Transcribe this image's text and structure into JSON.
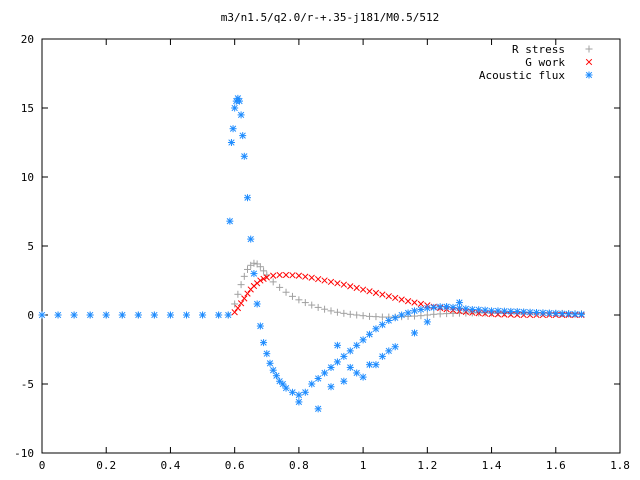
{
  "chart_data": {
    "type": "scatter",
    "title": "m3/n1.5/q2.0/r-+.35-j181/M0.5/512",
    "xlabel": "",
    "ylabel": "",
    "xlim": [
      0,
      1.8
    ],
    "ylim": [
      -10,
      20
    ],
    "x_ticks": [
      0,
      0.2,
      0.4,
      0.6,
      0.8,
      1,
      1.2,
      1.4,
      1.6,
      1.8
    ],
    "x_tick_labels": [
      "0",
      "0.2",
      "0.4",
      "0.6",
      "0.8",
      "1",
      "1.2",
      "1.4",
      "1.6",
      "1.8"
    ],
    "y_ticks": [
      -10,
      -5,
      0,
      5,
      10,
      15,
      20
    ],
    "y_tick_labels": [
      "-10",
      "-5",
      "0",
      "5",
      "10",
      "15",
      "20"
    ],
    "grid": false,
    "legend_position": "top-right",
    "series": [
      {
        "name": "R stress",
        "marker": "plus",
        "color": "#a0a0a0",
        "x": [
          0,
          0.05,
          0.1,
          0.15,
          0.2,
          0.25,
          0.3,
          0.35,
          0.4,
          0.45,
          0.5,
          0.55,
          0.58,
          0.6,
          0.61,
          0.62,
          0.63,
          0.64,
          0.65,
          0.66,
          0.67,
          0.68,
          0.69,
          0.7,
          0.72,
          0.74,
          0.76,
          0.78,
          0.8,
          0.82,
          0.84,
          0.86,
          0.88,
          0.9,
          0.92,
          0.94,
          0.96,
          0.98,
          1.0,
          1.02,
          1.04,
          1.06,
          1.08,
          1.1,
          1.12,
          1.14,
          1.16,
          1.18,
          1.2,
          1.22,
          1.24,
          1.26,
          1.28,
          1.3,
          1.32,
          1.34,
          1.36,
          1.38,
          1.4,
          1.42,
          1.44,
          1.46,
          1.48,
          1.5,
          1.52,
          1.54,
          1.56,
          1.58,
          1.6,
          1.62,
          1.64,
          1.66,
          1.68
        ],
        "y": [
          0,
          0,
          0,
          0,
          0,
          0,
          0,
          0,
          0,
          0,
          0,
          0,
          0,
          0.8,
          1.5,
          2.2,
          2.8,
          3.3,
          3.6,
          3.75,
          3.7,
          3.5,
          3.2,
          2.9,
          2.4,
          2.0,
          1.65,
          1.35,
          1.1,
          0.9,
          0.72,
          0.55,
          0.42,
          0.3,
          0.2,
          0.12,
          0.05,
          0.0,
          -0.05,
          -0.1,
          -0.12,
          -0.15,
          -0.15,
          -0.15,
          -0.12,
          -0.1,
          -0.08,
          -0.05,
          0.0,
          0.05,
          0.08,
          0.1,
          0.12,
          0.13,
          0.14,
          0.15,
          0.15,
          0.15,
          0.15,
          0.15,
          0.15,
          0.15,
          0.15,
          0.15,
          0.15,
          0.14,
          0.14,
          0.13,
          0.12,
          0.12,
          0.11,
          0.1,
          0.1
        ]
      },
      {
        "name": "G work",
        "marker": "cross",
        "color": "#ff0000",
        "x": [
          0.6,
          0.61,
          0.62,
          0.63,
          0.64,
          0.65,
          0.66,
          0.67,
          0.68,
          0.69,
          0.7,
          0.72,
          0.74,
          0.76,
          0.78,
          0.8,
          0.82,
          0.84,
          0.86,
          0.88,
          0.9,
          0.92,
          0.94,
          0.96,
          0.98,
          1.0,
          1.02,
          1.04,
          1.06,
          1.08,
          1.1,
          1.12,
          1.14,
          1.16,
          1.18,
          1.2,
          1.22,
          1.24,
          1.26,
          1.28,
          1.3,
          1.32,
          1.34,
          1.36,
          1.38,
          1.4,
          1.42,
          1.44,
          1.46,
          1.48,
          1.5,
          1.52,
          1.54,
          1.56,
          1.58,
          1.6,
          1.62,
          1.64,
          1.66,
          1.68
        ],
        "y": [
          0.2,
          0.5,
          0.85,
          1.2,
          1.55,
          1.85,
          2.1,
          2.3,
          2.5,
          2.62,
          2.72,
          2.85,
          2.9,
          2.9,
          2.88,
          2.85,
          2.78,
          2.7,
          2.6,
          2.5,
          2.4,
          2.3,
          2.2,
          2.08,
          1.96,
          1.84,
          1.72,
          1.6,
          1.48,
          1.36,
          1.24,
          1.12,
          1.0,
          0.9,
          0.8,
          0.7,
          0.6,
          0.5,
          0.42,
          0.35,
          0.28,
          0.22,
          0.17,
          0.13,
          0.1,
          0.07,
          0.05,
          0.03,
          0.02,
          0.01,
          0.0,
          0.0,
          0.0,
          0.0,
          0.0,
          0.0,
          0.0,
          0.0,
          0.0,
          0.0
        ]
      },
      {
        "name": "Acoustic flux",
        "marker": "star",
        "color": "#1e8cff",
        "x": [
          0,
          0.05,
          0.1,
          0.15,
          0.2,
          0.25,
          0.3,
          0.35,
          0.4,
          0.45,
          0.5,
          0.55,
          0.58,
          0.585,
          0.59,
          0.595,
          0.6,
          0.605,
          0.61,
          0.615,
          0.62,
          0.625,
          0.63,
          0.64,
          0.65,
          0.66,
          0.67,
          0.68,
          0.69,
          0.7,
          0.71,
          0.72,
          0.73,
          0.74,
          0.75,
          0.76,
          0.78,
          0.8,
          0.82,
          0.84,
          0.86,
          0.88,
          0.9,
          0.92,
          0.94,
          0.96,
          0.98,
          1.0,
          1.02,
          1.04,
          1.06,
          1.08,
          1.1,
          1.12,
          1.14,
          1.16,
          1.18,
          1.2,
          1.22,
          1.24,
          1.26,
          1.28,
          1.3,
          1.32,
          1.34,
          1.36,
          1.38,
          1.4,
          1.42,
          1.44,
          1.46,
          1.48,
          1.5,
          1.52,
          1.54,
          1.56,
          1.58,
          1.6,
          1.62,
          1.64,
          1.66,
          1.68,
          0.8,
          0.86,
          0.9,
          0.94,
          0.98,
          1.02,
          1.06,
          1.1,
          1.16,
          1.2,
          1.26,
          1.3,
          0.92,
          0.96,
          1.0,
          1.04,
          1.08
        ],
        "y": [
          0,
          0,
          0,
          0,
          0,
          0,
          0,
          0,
          0,
          0,
          0,
          0,
          0,
          6.8,
          12.5,
          13.5,
          15.0,
          15.5,
          15.7,
          15.5,
          14.5,
          13.0,
          11.5,
          8.5,
          5.5,
          3.0,
          0.8,
          -0.8,
          -2.0,
          -2.8,
          -3.5,
          -4.0,
          -4.4,
          -4.8,
          -5.0,
          -5.3,
          -5.6,
          -5.8,
          -5.6,
          -5.0,
          -4.6,
          -4.2,
          -3.8,
          -3.4,
          -3.0,
          -2.6,
          -2.2,
          -1.8,
          -1.4,
          -1.0,
          -0.7,
          -0.4,
          -0.2,
          0.0,
          0.15,
          0.3,
          0.4,
          0.5,
          0.55,
          0.6,
          0.6,
          0.55,
          0.5,
          0.45,
          0.4,
          0.38,
          0.35,
          0.3,
          0.3,
          0.28,
          0.26,
          0.25,
          0.22,
          0.2,
          0.18,
          0.16,
          0.14,
          0.12,
          0.1,
          0.08,
          0.06,
          0.05,
          -6.3,
          -6.8,
          -5.2,
          -4.8,
          -4.2,
          -3.6,
          -3.0,
          -2.3,
          -1.3,
          -0.5,
          0.6,
          0.9,
          -2.2,
          -3.8,
          -4.5,
          -3.6,
          -2.6
        ]
      }
    ]
  }
}
